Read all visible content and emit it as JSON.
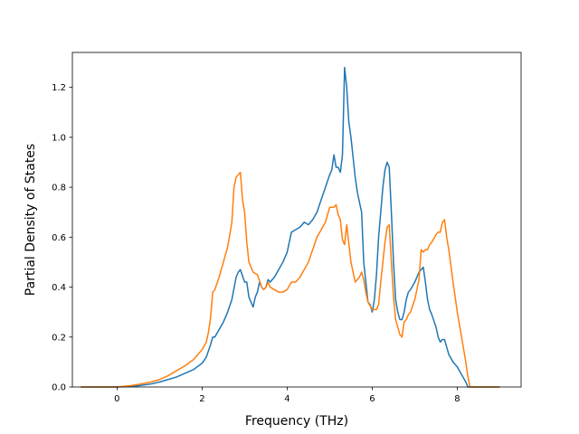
{
  "chart_data": {
    "type": "line",
    "xlabel": "Frequency (THz)",
    "ylabel": "Partial Density of States",
    "xlim": [
      -1.05,
      9.5
    ],
    "ylim": [
      0.0,
      1.34
    ],
    "grid": false,
    "xticks": [
      0,
      2,
      4,
      6,
      8
    ],
    "xtick_labels": [
      "0",
      "2",
      "4",
      "6",
      "8"
    ],
    "yticks": [
      0.0,
      0.2,
      0.4,
      0.6,
      0.8,
      1.0,
      1.2
    ],
    "ytick_labels": [
      "0.0",
      "0.2",
      "0.4",
      "0.6",
      "0.8",
      "1.0",
      "1.2"
    ],
    "series": [
      {
        "color": "#1f77b4",
        "x": [
          -0.85,
          -0.5,
          0.0,
          0.3,
          0.5,
          0.8,
          1.0,
          1.2,
          1.4,
          1.6,
          1.8,
          2.0,
          2.1,
          2.2,
          2.25,
          2.3,
          2.4,
          2.5,
          2.6,
          2.7,
          2.8,
          2.85,
          2.9,
          3.0,
          3.05,
          3.1,
          3.2,
          3.25,
          3.3,
          3.35,
          3.4,
          3.45,
          3.5,
          3.55,
          3.6,
          3.7,
          3.8,
          3.9,
          4.0,
          4.1,
          4.2,
          4.3,
          4.4,
          4.5,
          4.6,
          4.7,
          4.8,
          4.9,
          5.0,
          5.05,
          5.1,
          5.15,
          5.2,
          5.25,
          5.3,
          5.35,
          5.4,
          5.45,
          5.5,
          5.55,
          5.6,
          5.65,
          5.7,
          5.75,
          5.8,
          5.85,
          5.9,
          5.95,
          6.0,
          6.05,
          6.1,
          6.15,
          6.2,
          6.25,
          6.3,
          6.35,
          6.4,
          6.45,
          6.5,
          6.55,
          6.6,
          6.65,
          6.7,
          6.75,
          6.8,
          6.85,
          6.9,
          7.0,
          7.1,
          7.2,
          7.25,
          7.3,
          7.35,
          7.4,
          7.5,
          7.55,
          7.6,
          7.65,
          7.7,
          7.75,
          7.8,
          7.9,
          8.0,
          8.1,
          8.2,
          8.25,
          8.3,
          8.5,
          9.0
        ],
        "y": [
          0.0,
          0.0,
          0.0,
          0.002,
          0.005,
          0.012,
          0.02,
          0.03,
          0.04,
          0.055,
          0.07,
          0.095,
          0.12,
          0.17,
          0.2,
          0.2,
          0.23,
          0.26,
          0.3,
          0.35,
          0.44,
          0.46,
          0.47,
          0.42,
          0.42,
          0.36,
          0.32,
          0.36,
          0.38,
          0.42,
          0.4,
          0.39,
          0.4,
          0.43,
          0.42,
          0.44,
          0.47,
          0.5,
          0.54,
          0.62,
          0.63,
          0.64,
          0.66,
          0.65,
          0.67,
          0.7,
          0.75,
          0.8,
          0.85,
          0.87,
          0.93,
          0.88,
          0.88,
          0.86,
          0.93,
          1.28,
          1.2,
          1.06,
          1.0,
          0.92,
          0.84,
          0.78,
          0.74,
          0.7,
          0.5,
          0.42,
          0.34,
          0.33,
          0.3,
          0.35,
          0.45,
          0.6,
          0.7,
          0.8,
          0.87,
          0.9,
          0.88,
          0.7,
          0.5,
          0.35,
          0.3,
          0.27,
          0.27,
          0.3,
          0.35,
          0.38,
          0.39,
          0.42,
          0.46,
          0.48,
          0.42,
          0.35,
          0.31,
          0.29,
          0.24,
          0.2,
          0.18,
          0.19,
          0.19,
          0.16,
          0.13,
          0.1,
          0.08,
          0.05,
          0.02,
          0.0,
          0.0,
          0.0,
          0.0
        ]
      },
      {
        "color": "#ff7f0e",
        "x": [
          -0.85,
          -0.5,
          0.0,
          0.3,
          0.5,
          0.8,
          1.0,
          1.2,
          1.4,
          1.6,
          1.8,
          2.0,
          2.1,
          2.15,
          2.2,
          2.25,
          2.3,
          2.4,
          2.5,
          2.6,
          2.7,
          2.75,
          2.8,
          2.85,
          2.9,
          2.95,
          3.0,
          3.05,
          3.1,
          3.2,
          3.3,
          3.4,
          3.45,
          3.5,
          3.55,
          3.6,
          3.7,
          3.8,
          3.9,
          4.0,
          4.1,
          4.2,
          4.3,
          4.4,
          4.5,
          4.6,
          4.7,
          4.8,
          4.9,
          5.0,
          5.05,
          5.1,
          5.15,
          5.2,
          5.25,
          5.3,
          5.35,
          5.4,
          5.5,
          5.6,
          5.7,
          5.75,
          5.8,
          5.85,
          5.9,
          6.0,
          6.1,
          6.15,
          6.2,
          6.25,
          6.3,
          6.35,
          6.4,
          6.45,
          6.5,
          6.55,
          6.6,
          6.65,
          6.7,
          6.75,
          6.8,
          6.85,
          6.9,
          7.0,
          7.1,
          7.15,
          7.2,
          7.25,
          7.3,
          7.35,
          7.4,
          7.5,
          7.55,
          7.6,
          7.65,
          7.7,
          7.75,
          7.8,
          7.9,
          8.0,
          8.1,
          8.2,
          8.25,
          8.3,
          8.5,
          9.0
        ],
        "y": [
          0.0,
          0.0,
          0.0,
          0.005,
          0.01,
          0.02,
          0.03,
          0.045,
          0.065,
          0.085,
          0.11,
          0.15,
          0.18,
          0.22,
          0.28,
          0.38,
          0.39,
          0.44,
          0.5,
          0.56,
          0.66,
          0.8,
          0.84,
          0.85,
          0.86,
          0.75,
          0.7,
          0.58,
          0.5,
          0.46,
          0.45,
          0.4,
          0.39,
          0.4,
          0.42,
          0.4,
          0.39,
          0.38,
          0.38,
          0.39,
          0.42,
          0.42,
          0.44,
          0.47,
          0.5,
          0.55,
          0.6,
          0.63,
          0.66,
          0.72,
          0.72,
          0.72,
          0.73,
          0.69,
          0.67,
          0.59,
          0.57,
          0.65,
          0.5,
          0.42,
          0.44,
          0.46,
          0.43,
          0.38,
          0.34,
          0.31,
          0.31,
          0.33,
          0.42,
          0.5,
          0.58,
          0.64,
          0.65,
          0.5,
          0.36,
          0.27,
          0.24,
          0.21,
          0.2,
          0.26,
          0.27,
          0.29,
          0.3,
          0.35,
          0.43,
          0.55,
          0.54,
          0.55,
          0.55,
          0.57,
          0.58,
          0.61,
          0.62,
          0.62,
          0.66,
          0.67,
          0.6,
          0.55,
          0.42,
          0.3,
          0.2,
          0.1,
          0.04,
          0.0,
          0.0,
          0.0
        ]
      }
    ]
  }
}
